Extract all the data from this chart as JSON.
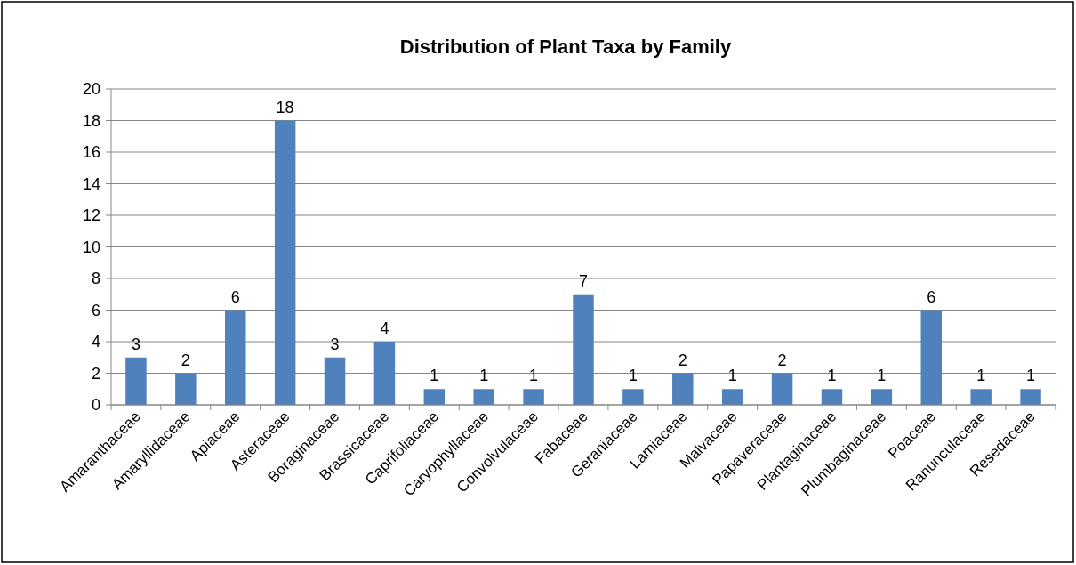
{
  "chart_data": {
    "type": "bar",
    "title": "Distribution of Plant Taxa by Family",
    "categories": [
      "Amaranthaceae",
      "Amaryllidaceae",
      "Apiaceae",
      "Asteraceae",
      "Boraginaceae",
      "Brassicaceae",
      "Caprifoliaceae",
      "Caryophyllaceae",
      "Convolvulaceae",
      "Fabaceae",
      "Geraniaceae",
      "Lamiaceae",
      "Malvaceae",
      "Papaveraceae",
      "Plantaginaceae",
      "Plumbaginaceae",
      "Poaceae",
      "Ranunculaceae",
      "Resedaceae"
    ],
    "values": [
      3,
      2,
      6,
      18,
      3,
      4,
      1,
      1,
      1,
      7,
      1,
      2,
      1,
      2,
      1,
      1,
      6,
      1,
      1
    ],
    "color": "#4f81bd",
    "ylim": [
      0,
      20
    ],
    "yticks": [
      0,
      2,
      4,
      6,
      8,
      10,
      12,
      14,
      16,
      18,
      20
    ],
    "grid": "y",
    "data_labels": true
  }
}
